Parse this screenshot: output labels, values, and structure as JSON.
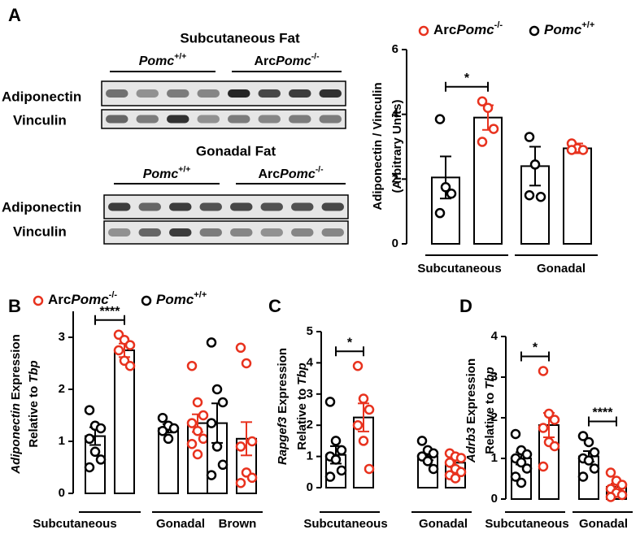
{
  "blots": [
    {
      "title": "Subcutaneous Fat",
      "groups": [
        {
          "gene": "Pomc",
          "sup": "+/+"
        },
        {
          "prefix": "Arc",
          "gene": "Pomc",
          "sup": "-/-"
        }
      ],
      "rows": [
        "Adiponectin",
        "Vinculin"
      ]
    },
    {
      "title": "Gonadal Fat",
      "groups": [
        {
          "gene": "Pomc",
          "sup": "+/+"
        },
        {
          "prefix": "Arc",
          "gene": "Pomc",
          "sup": "-/-"
        }
      ],
      "rows": [
        "Adiponectin",
        "Vinculin"
      ]
    }
  ],
  "chart_data": [
    {
      "type": "bar",
      "panel_label": "A",
      "ylabel": [
        [
          {
            "text": "Adiponectin / Vinculin"
          }
        ],
        [
          {
            "text": "(Arbitrary Units)"
          }
        ]
      ],
      "categories": [
        "Subcutaneous",
        "Gonadal"
      ],
      "significance": [
        "*",
        null
      ],
      "ylim": [
        0,
        6
      ],
      "yticks": [
        0,
        2,
        4,
        6
      ],
      "series": [
        {
          "name": {
            "prefix": "Arc",
            "gene": "Pomc",
            "sup": "-/-"
          },
          "color": "#e8321e",
          "values": [
            3.9,
            2.95
          ],
          "errors": [
            0.38,
            0.15
          ],
          "points": [
            [
              4.4,
              4.2,
              3.55,
              3.15
            ],
            [
              3.1,
              2.95,
              2.9,
              2.9
            ]
          ]
        },
        {
          "name": {
            "gene": "Pomc",
            "sup": "+/+"
          },
          "color": "#000000",
          "values": [
            2.05,
            2.4
          ],
          "errors": [
            0.65,
            0.6
          ],
          "points": [
            [
              3.85,
              1.75,
              1.55,
              0.95
            ],
            [
              3.3,
              2.45,
              1.45,
              1.5
            ]
          ]
        }
      ]
    },
    {
      "type": "bar",
      "panel_label": "B",
      "ylabel": [
        [
          {
            "text": "Adiponectin",
            "italic": true
          },
          {
            "text": "Expression"
          }
        ],
        [
          {
            "text": "Relative to"
          },
          {
            "text": "Tbp",
            "italic": true
          }
        ]
      ],
      "categories": [
        "Subcutaneous",
        "Gonadal",
        "Brown"
      ],
      "significance": [
        "****",
        null,
        null
      ],
      "ylim": [
        0,
        3.5
      ],
      "yticks": [
        0,
        1,
        2,
        3
      ],
      "series": [
        {
          "name": {
            "prefix": "Arc",
            "gene": "Pomc",
            "sup": "-/-"
          },
          "color": "#e8321e",
          "values": [
            2.75,
            1.35,
            1.05
          ],
          "errors": [
            0.13,
            0.17,
            0.32
          ],
          "points": [
            [
              3.05,
              2.95,
              2.85,
              2.75,
              2.55,
              2.45
            ],
            [
              2.45,
              1.75,
              1.5,
              1.35,
              1.2,
              1.05,
              0.95,
              0.75
            ],
            [
              2.8,
              2.5,
              1.0,
              0.9,
              0.4,
              0.3,
              0.2
            ]
          ]
        },
        {
          "name": {
            "gene": "Pomc",
            "sup": "+/+"
          },
          "color": "#000000",
          "values": [
            1.1,
            1.25,
            1.35
          ],
          "errors": [
            0.17,
            0.08,
            0.38
          ],
          "points": [
            [
              1.6,
              1.3,
              1.25,
              1.05,
              0.8,
              0.65,
              0.5
            ],
            [
              1.45,
              1.3,
              1.25,
              1.2,
              1.05
            ],
            [
              2.9,
              2.0,
              1.75,
              1.35,
              0.9,
              0.55,
              0.35
            ]
          ]
        }
      ]
    },
    {
      "type": "bar",
      "panel_label": "C",
      "ylabel": [
        [
          {
            "text": "Rapgef3",
            "italic": true
          },
          {
            "text": "Expression"
          }
        ],
        [
          {
            "text": "Relative to"
          },
          {
            "text": "Tbp",
            "italic": true
          }
        ]
      ],
      "categories": [
        "Subcutaneous",
        "Gonadal"
      ],
      "significance": [
        "*",
        null
      ],
      "ylim": [
        0,
        5
      ],
      "yticks": [
        0,
        1,
        2,
        3,
        4,
        5
      ],
      "series": [
        {
          "color": "#e8321e",
          "values": [
            2.25,
            0.8
          ],
          "errors": [
            0.45,
            0.15
          ],
          "points": [
            [
              3.9,
              2.85,
              2.5,
              2.0,
              1.5,
              0.6
            ],
            [
              1.1,
              1.0,
              0.95,
              0.8,
              0.6,
              0.5,
              0.4,
              0.3
            ]
          ]
        },
        {
          "color": "#000000",
          "values": [
            1.05,
            1.0
          ],
          "errors": [
            0.28,
            0.12
          ],
          "points": [
            [
              2.75,
              1.5,
              1.2,
              1.0,
              0.9,
              0.55,
              0.35
            ],
            [
              1.5,
              1.2,
              1.1,
              1.0,
              0.85,
              0.6
            ]
          ]
        }
      ]
    },
    {
      "type": "bar",
      "panel_label": "D",
      "ylabel": [
        [
          {
            "text": "Adrb3",
            "italic": true
          },
          {
            "text": "Expression"
          }
        ],
        [
          {
            "text": "Relative to"
          },
          {
            "text": "Tbp",
            "italic": true
          }
        ]
      ],
      "categories": [
        "Subcutaneous",
        "Gonadal"
      ],
      "significance": [
        "*",
        "****"
      ],
      "ylim": [
        0,
        4
      ],
      "yticks": [
        0,
        1,
        2,
        3,
        4
      ],
      "series": [
        {
          "color": "#e8321e",
          "values": [
            1.82,
            0.3
          ],
          "errors": [
            0.3,
            0.08
          ],
          "points": [
            [
              3.15,
              2.1,
              1.95,
              1.75,
              1.4,
              1.3,
              0.8
            ],
            [
              0.65,
              0.45,
              0.35,
              0.25,
              0.15,
              0.1,
              0.05
            ]
          ]
        },
        {
          "color": "#000000",
          "values": [
            1.0,
            1.05
          ],
          "errors": [
            0.15,
            0.13
          ],
          "points": [
            [
              1.6,
              1.2,
              1.1,
              1.0,
              0.9,
              0.75,
              0.55,
              0.4
            ],
            [
              1.55,
              1.4,
              1.15,
              1.0,
              0.95,
              0.75,
              0.55
            ]
          ]
        }
      ]
    }
  ]
}
